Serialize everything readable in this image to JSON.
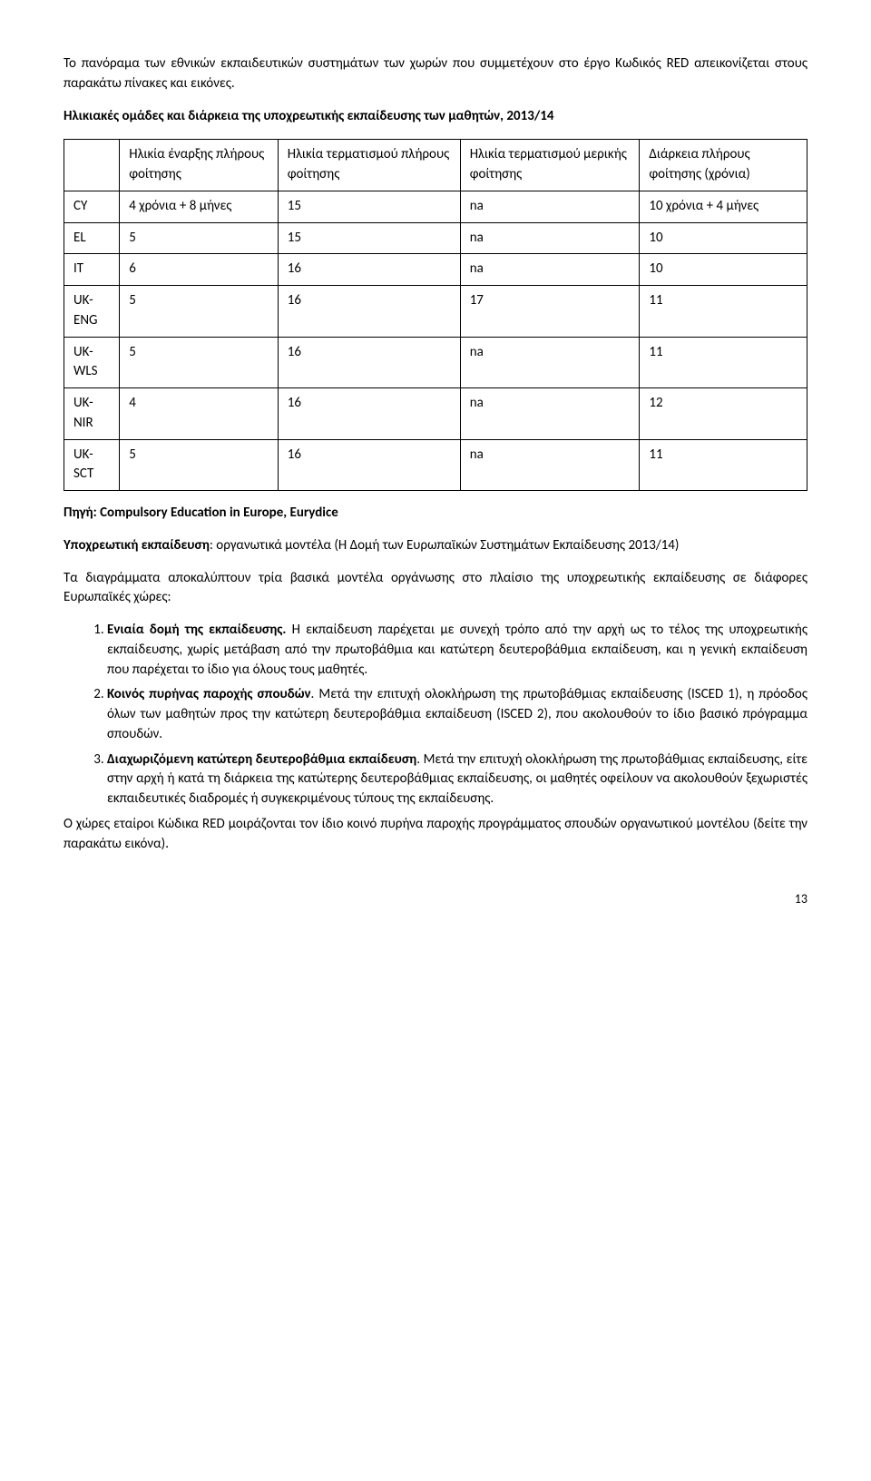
{
  "intro1": "Το πανόραμα των εθνικών εκπαιδευτικών συστημάτων των χωρών που συμμετέχουν στο έργο Κωδικός RED απεικονίζεται στους παρακάτω πίνακες και εικόνες.",
  "intro2": "Ηλικιακές ομάδες και διάρκεια της υποχρεωτικής εκπαίδευσης των μαθητών, 2013/14",
  "table": {
    "headers": {
      "h0": "",
      "h1": "Ηλικία έναρξης πλήρους φοίτησης",
      "h2": "Ηλικία τερματισμού πλήρους φοίτησης",
      "h3": "Ηλικία τερματισμού μερικής φοίτησης",
      "h4": "Διάρκεια πλήρους φοίτησης (χρόνια)"
    },
    "rows": [
      {
        "c0": "CY",
        "c1": "4 χρόνια + 8 μήνες",
        "c2": "15",
        "c3": "na",
        "c4": "10 χρόνια + 4 μήνες"
      },
      {
        "c0": "EL",
        "c1": "5",
        "c2": "15",
        "c3": "na",
        "c4": "10"
      },
      {
        "c0": "IT",
        "c1": "6",
        "c2": "16",
        "c3": "na",
        "c4": "10"
      },
      {
        "c0": "UK-ENG",
        "c1": "5",
        "c2": "16",
        "c3": "17",
        "c4": "11"
      },
      {
        "c0": "UK-WLS",
        "c1": "5",
        "c2": "16",
        "c3": "na",
        "c4": "11"
      },
      {
        "c0": "UK-NIR",
        "c1": "4",
        "c2": "16",
        "c3": "na",
        "c4": "12"
      },
      {
        "c0": "UK-SCT",
        "c1": "5",
        "c2": "16",
        "c3": "na",
        "c4": "11"
      }
    ]
  },
  "source": "Πηγή: Compulsory Education in Europe, Eurydice",
  "mand_bold": "Υποχρεωτική εκπαίδευση",
  "mand_rest": ": οργανωτικά μοντέλα (Η Δομή των Ευρωπαϊκών Συστημάτων Εκπαίδευσης 2013/14)",
  "para3": "Τα διαγράμματα αποκαλύπτουν τρία βασικά μοντέλα οργάνωσης στο πλαίσιο της υποχρεωτικής εκπαίδευσης σε διάφορες Ευρωπαϊκές χώρες:",
  "li1_bold": "Ενιαία δομή της εκπαίδευσης.",
  "li1_rest": " Η εκπαίδευση παρέχεται με συνεχή τρόπο από την αρχή ως το τέλος της υποχρεωτικής εκπαίδευσης, χωρίς μετάβαση από την πρωτοβάθμια και κατώτερη δευτεροβάθμια εκπαίδευση, και η γενική εκπαίδευση που παρέχεται το ίδιο για όλους τους μαθητές.",
  "li2_bold": "Κοινός πυρήνας παροχής σπουδών",
  "li2_rest": ". Μετά την επιτυχή ολοκλήρωση της πρωτοβάθμιας εκπαίδευσης (ISCED 1), η πρόοδος όλων των μαθητών προς την κατώτερη δευτεροβάθμια εκπαίδευση (ISCED 2), που ακολουθούν το ίδιο βασικό πρόγραμμα σπουδών.",
  "li3_bold": "Διαχωριζόμενη κατώτερη δευτεροβάθμια εκπαίδευση",
  "li3_rest": ". Μετά την επιτυχή ολοκλήρωση της πρωτοβάθμιας εκπαίδευσης, είτε στην αρχή ή κατά τη διάρκεια της κατώτερης δευτεροβάθμιας εκπαίδευσης, οι μαθητές οφείλουν να ακολουθούν ξεχωριστές εκπαιδευτικές διαδρομές ή συγκεκριμένους τύπους της εκπαίδευσης.",
  "closing": "Ο χώρες εταίροι Κώδικα RED μοιράζονται τον ίδιο κοινό πυρήνα παροχής προγράμματος σπουδών οργανωτικού μοντέλου (δείτε την παρακάτω εικόνα).",
  "page_num": "13"
}
